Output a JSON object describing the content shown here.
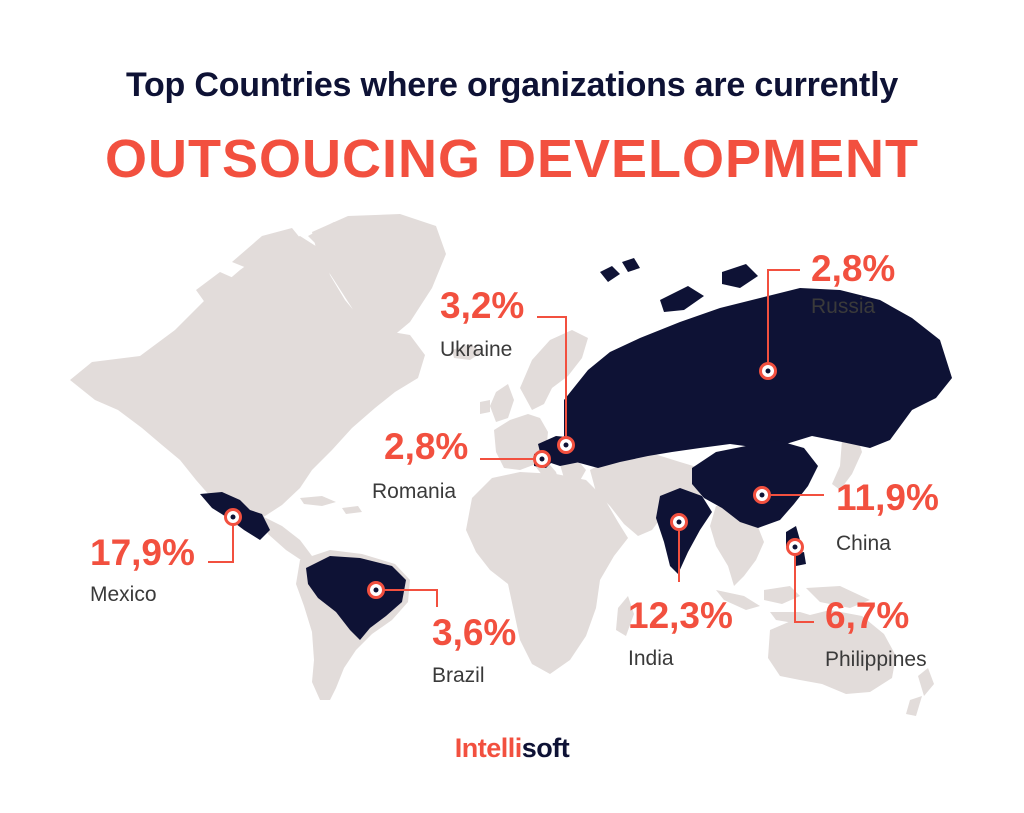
{
  "title_line1": "Top Countries where organizations are currently",
  "title_line2": "OUTSOUCING DEVELOPMENT",
  "colors": {
    "highlight": "#0e1235",
    "land": "#e2dcda",
    "accent": "#f2503f"
  },
  "countries": [
    {
      "id": "russia",
      "name": "Russia",
      "value": "2,8%"
    },
    {
      "id": "ukraine",
      "name": "Ukraine",
      "value": "3,2%"
    },
    {
      "id": "romania",
      "name": "Romania",
      "value": "2,8%"
    },
    {
      "id": "china",
      "name": "China",
      "value": "11,9%"
    },
    {
      "id": "mexico",
      "name": "Mexico",
      "value": "17,9%"
    },
    {
      "id": "brazil",
      "name": "Brazil",
      "value": "3,6%"
    },
    {
      "id": "india",
      "name": "India",
      "value": "12,3%"
    },
    {
      "id": "philippines",
      "name": "Philippines",
      "value": "6,7%"
    }
  ],
  "logo": {
    "part1": "Intelli",
    "part2": "soft"
  }
}
